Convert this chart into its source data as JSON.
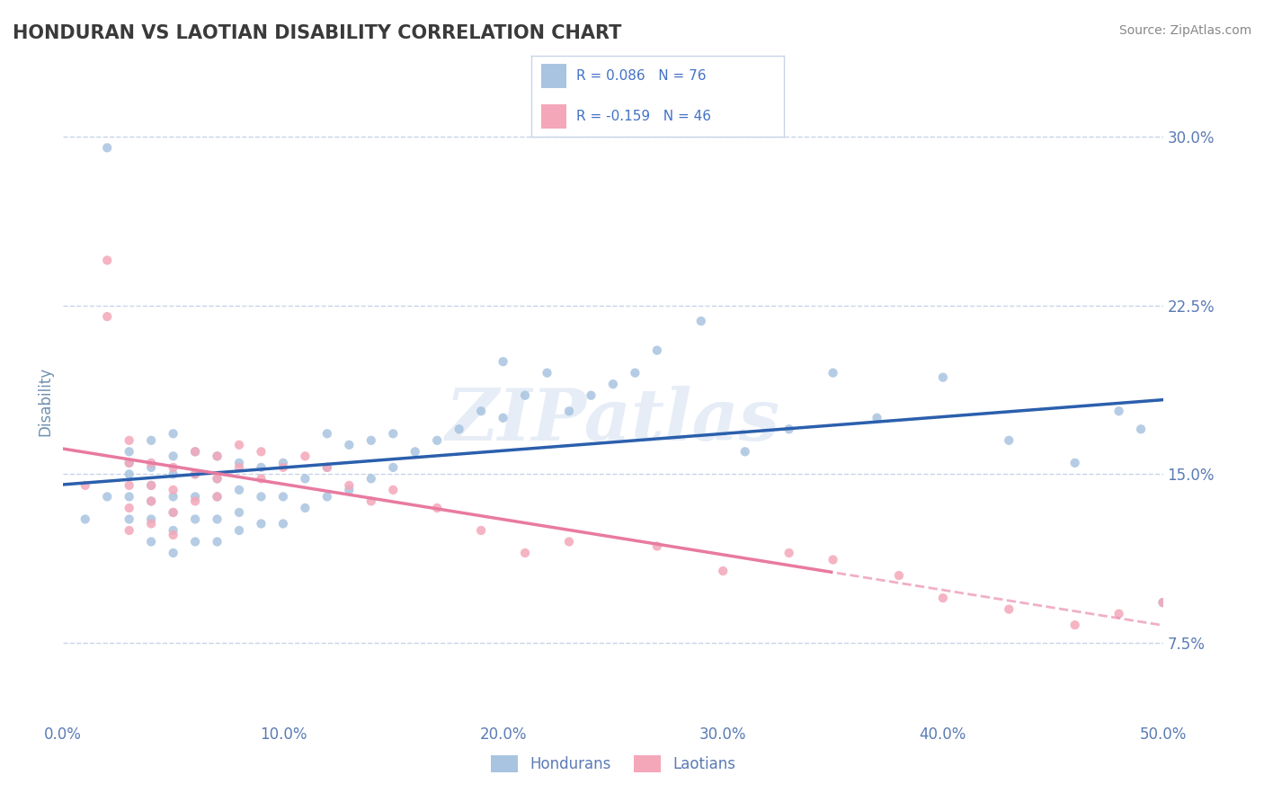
{
  "title": "HONDURAN VS LAOTIAN DISABILITY CORRELATION CHART",
  "source": "Source: ZipAtlas.com",
  "ylabel": "Disability",
  "xlim": [
    0.0,
    0.5
  ],
  "ylim": [
    0.04,
    0.325
  ],
  "yticks": [
    0.075,
    0.15,
    0.225,
    0.3
  ],
  "ytick_labels": [
    "7.5%",
    "15.0%",
    "22.5%",
    "30.0%"
  ],
  "xticks": [
    0.0,
    0.1,
    0.2,
    0.3,
    0.4,
    0.5
  ],
  "xtick_labels": [
    "0.0%",
    "10.0%",
    "20.0%",
    "30.0%",
    "40.0%",
    "50.0%"
  ],
  "honduran_color": "#a8c4e0",
  "laotian_color": "#f4a7b9",
  "honduran_line_color": "#2b5fad",
  "laotian_line_color": "#e87aa0",
  "watermark": "ZIPatlas",
  "background_color": "#ffffff",
  "grid_color": "#c8d4e8",
  "honduran_scatter_x": [
    0.01,
    0.02,
    0.02,
    0.03,
    0.03,
    0.03,
    0.03,
    0.03,
    0.04,
    0.04,
    0.04,
    0.04,
    0.04,
    0.04,
    0.05,
    0.05,
    0.05,
    0.05,
    0.05,
    0.05,
    0.05,
    0.06,
    0.06,
    0.06,
    0.06,
    0.06,
    0.07,
    0.07,
    0.07,
    0.07,
    0.07,
    0.08,
    0.08,
    0.08,
    0.08,
    0.09,
    0.09,
    0.09,
    0.1,
    0.1,
    0.1,
    0.11,
    0.11,
    0.12,
    0.12,
    0.12,
    0.13,
    0.13,
    0.14,
    0.14,
    0.15,
    0.15,
    0.16,
    0.17,
    0.18,
    0.19,
    0.2,
    0.2,
    0.21,
    0.22,
    0.23,
    0.24,
    0.25,
    0.26,
    0.27,
    0.29,
    0.31,
    0.33,
    0.35,
    0.37,
    0.4,
    0.43,
    0.46,
    0.48,
    0.49,
    0.5
  ],
  "honduran_scatter_y": [
    0.13,
    0.295,
    0.14,
    0.13,
    0.14,
    0.15,
    0.155,
    0.16,
    0.12,
    0.13,
    0.138,
    0.145,
    0.153,
    0.165,
    0.115,
    0.125,
    0.133,
    0.14,
    0.15,
    0.158,
    0.168,
    0.12,
    0.13,
    0.14,
    0.15,
    0.16,
    0.12,
    0.13,
    0.14,
    0.148,
    0.158,
    0.125,
    0.133,
    0.143,
    0.155,
    0.128,
    0.14,
    0.153,
    0.128,
    0.14,
    0.155,
    0.135,
    0.148,
    0.14,
    0.153,
    0.168,
    0.143,
    0.163,
    0.148,
    0.165,
    0.153,
    0.168,
    0.16,
    0.165,
    0.17,
    0.178,
    0.175,
    0.2,
    0.185,
    0.195,
    0.178,
    0.185,
    0.19,
    0.195,
    0.205,
    0.218,
    0.16,
    0.17,
    0.195,
    0.175,
    0.193,
    0.165,
    0.155,
    0.178,
    0.17,
    0.093
  ],
  "laotian_scatter_x": [
    0.01,
    0.02,
    0.02,
    0.03,
    0.03,
    0.03,
    0.03,
    0.03,
    0.04,
    0.04,
    0.04,
    0.04,
    0.05,
    0.05,
    0.05,
    0.05,
    0.06,
    0.06,
    0.06,
    0.07,
    0.07,
    0.07,
    0.08,
    0.08,
    0.09,
    0.09,
    0.1,
    0.11,
    0.12,
    0.13,
    0.14,
    0.15,
    0.17,
    0.19,
    0.21,
    0.23,
    0.27,
    0.3,
    0.33,
    0.35,
    0.38,
    0.4,
    0.43,
    0.46,
    0.48,
    0.5
  ],
  "laotian_scatter_y": [
    0.145,
    0.245,
    0.22,
    0.165,
    0.155,
    0.145,
    0.135,
    0.125,
    0.155,
    0.145,
    0.138,
    0.128,
    0.153,
    0.143,
    0.133,
    0.123,
    0.16,
    0.15,
    0.138,
    0.148,
    0.158,
    0.14,
    0.153,
    0.163,
    0.16,
    0.148,
    0.153,
    0.158,
    0.153,
    0.145,
    0.138,
    0.143,
    0.135,
    0.125,
    0.115,
    0.12,
    0.118,
    0.107,
    0.115,
    0.112,
    0.105,
    0.095,
    0.09,
    0.083,
    0.088,
    0.093
  ],
  "legend_text1": "R = 0.086   N = 76",
  "legend_text2": "R = -0.159   N = 46",
  "legend_label1": "Hondurans",
  "legend_label2": "Laotians"
}
